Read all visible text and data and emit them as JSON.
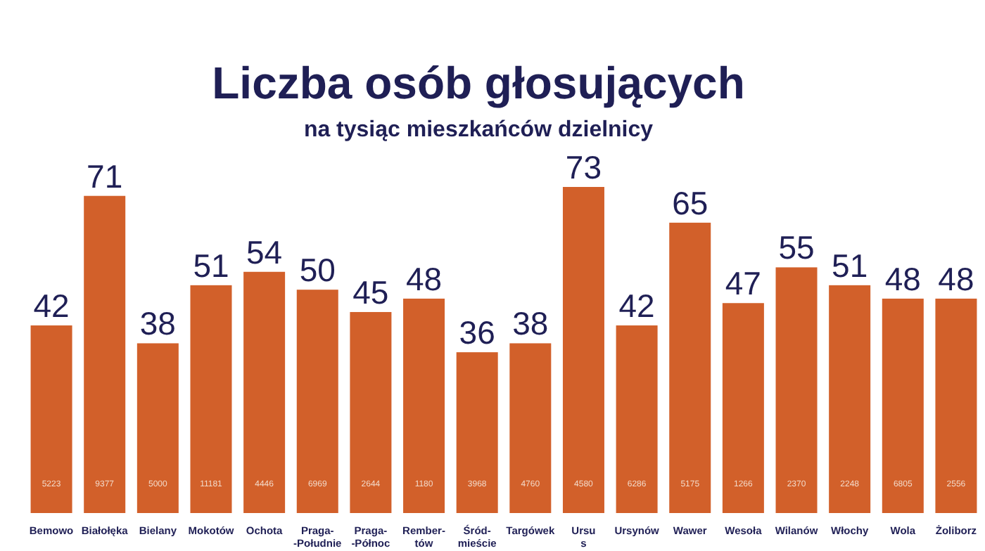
{
  "chart_data": {
    "type": "bar",
    "title": "Liczba osób głosujących",
    "subtitle": "na tysiąc mieszkańców dzielnicy",
    "categories": [
      "Bemowo",
      "Białołęka",
      "Bielany",
      "Mokotów",
      "Ochota",
      "Praga-\n-Południe",
      "Praga-\n-Północ",
      "Rember-\ntów",
      "Śród-\nmieście",
      "Targówek",
      "Ursu\ns",
      "Ursynów",
      "Wawer",
      "Wesoła",
      "Wilanów",
      "Włochy",
      "Wola",
      "Żoliborz"
    ],
    "values": [
      42,
      71,
      38,
      51,
      54,
      50,
      45,
      48,
      36,
      38,
      73,
      42,
      65,
      47,
      55,
      51,
      48,
      48
    ],
    "color": "#d2602a",
    "data_labels": true,
    "annotations": [
      "5223",
      "9377",
      "5000",
      "11181",
      "4446",
      "6969",
      "2644",
      "1180",
      "3968",
      "4760",
      "4580",
      "6286",
      "5175",
      "1266",
      "2370",
      "2248",
      "6805",
      "2556"
    ]
  }
}
